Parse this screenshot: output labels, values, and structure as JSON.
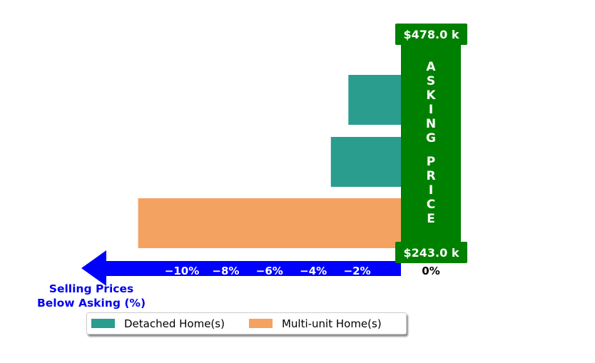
{
  "chart_data": {
    "type": "bar",
    "orientation": "horizontal",
    "series": [
      {
        "name": "Detached Home(s)",
        "color": "#2a9d8f",
        "values": [
          null,
          -3.2,
          -2.4
        ]
      },
      {
        "name": "Multi-unit Home(s)",
        "color": "#f4a261",
        "values": [
          -12.0,
          null,
          null
        ]
      }
    ],
    "xlim": [
      -12,
      0
    ],
    "xticks": [
      -10,
      -8,
      -6,
      -4,
      -2
    ],
    "xtick_labels": [
      "−10%",
      "−8%",
      "−6%",
      "−4%",
      "−2%"
    ],
    "zero_label": "0%",
    "axis_label": "Selling Prices\nBelow Asking (%)",
    "asking_price_label": "ASKING PRICE",
    "top_price_label": "$478.0 k",
    "bottom_price_label": "$243.0 k",
    "legend": {
      "placement": "bottom-left",
      "columns": 2
    },
    "colors": {
      "arrow": "#0000ff",
      "asking_bar": "#008000",
      "label_text": "#0000ee"
    }
  }
}
